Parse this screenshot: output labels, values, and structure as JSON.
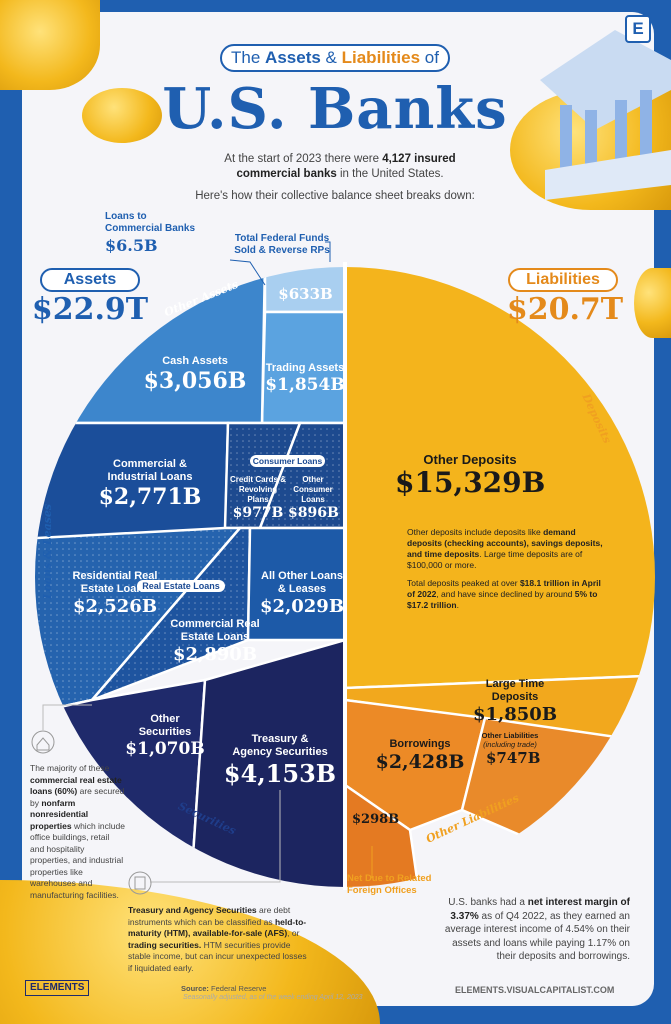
{
  "header": {
    "title_pre": "The",
    "title_assets": "Assets",
    "title_amp": "&",
    "title_liab": "Liabilities",
    "title_of": "of",
    "main_title": "U.S. Banks",
    "logo_letter": "E",
    "intro_1": "At the start of 2023 there were ",
    "intro_bold": "4,127 insured commercial banks",
    "intro_2": " in the United States.",
    "intro_line2": "Here's how their collective balance sheet breaks down:"
  },
  "chart_data": {
    "type": "pie",
    "title": "The Assets & Liabilities of U.S. Banks",
    "assets": {
      "label": "Assets",
      "total": "$22.9T",
      "groups": [
        {
          "name": "Other Assets",
          "items": [
            {
              "name": "Loans to Commercial Banks",
              "value": 6.5,
              "display": "$6.5B"
            },
            {
              "name": "Total Federal Funds Sold & Reverse RPs",
              "value": 633,
              "display": "$633B"
            },
            {
              "name": "Cash Assets",
              "value": 3056,
              "display": "$3,056B"
            },
            {
              "name": "Trading Assets",
              "value": 1854,
              "display": "$1,854B"
            }
          ]
        },
        {
          "name": "Loans & Leases",
          "items": [
            {
              "name": "Commercial & Industrial Loans",
              "value": 2771,
              "display": "$2,771B"
            },
            {
              "name": "Credit Cards & Revolving Plans",
              "group": "Consumer Loans",
              "value": 977,
              "display": "$977B"
            },
            {
              "name": "Other Consumer Loans",
              "group": "Consumer Loans",
              "value": 896,
              "display": "$896B"
            },
            {
              "name": "Residential Real Estate Loans",
              "group": "Real Estate Loans",
              "value": 2526,
              "display": "$2,526B"
            },
            {
              "name": "Commercial Real Estate Loans",
              "group": "Real Estate Loans",
              "value": 2890,
              "display": "$2,890B"
            },
            {
              "name": "All Other Loans & Leases",
              "value": 2029,
              "display": "$2,029B"
            }
          ]
        },
        {
          "name": "Securities",
          "items": [
            {
              "name": "Other Securities",
              "value": 1070,
              "display": "$1,070B"
            },
            {
              "name": "Treasury & Agency Securities",
              "value": 4153,
              "display": "$4,153B"
            }
          ]
        }
      ]
    },
    "liabilities": {
      "label": "Liabilities",
      "total": "$20.7T",
      "groups": [
        {
          "name": "Deposits",
          "items": [
            {
              "name": "Other Deposits",
              "value": 15329,
              "display": "$15,329B"
            },
            {
              "name": "Large Time Deposits",
              "value": 1850,
              "display": "$1,850B"
            }
          ]
        },
        {
          "name": "Other Liabilities",
          "items": [
            {
              "name": "Borrowings",
              "value": 2428,
              "display": "$2,428B"
            },
            {
              "name": "Other Liabilities (including trade)",
              "value": 747,
              "display": "$747B"
            },
            {
              "name": "Net Due to Related Foreign Offices",
              "value": 298,
              "display": "$298B"
            }
          ]
        }
      ]
    },
    "colors": {
      "assets_light": "#5ba3e0",
      "assets_mid": "#2f73bd",
      "assets_dark": "#1b4a93",
      "assets_navy": "#1c2560",
      "liab_yellow": "#f4b41c",
      "liab_orange": "#ec8a26"
    }
  },
  "labels": {
    "loans_commercial_banks_1": "Loans to",
    "loans_commercial_banks_2": "Commercial Banks",
    "loans_commercial_banks_val": "$6.5B",
    "fed_funds_1": "Total Federal Funds",
    "fed_funds_2": "Sold & Reverse RPs",
    "fed_funds_val": "$633B",
    "cash": "Cash Assets",
    "cash_val": "$3,056B",
    "trading": "Trading Assets",
    "trading_val": "$1,854B",
    "ci_1": "Commercial &",
    "ci_2": "Industrial Loans",
    "ci_val": "$2,771B",
    "consumer_loans": "Consumer Loans",
    "cc_1": "Credit Cards &",
    "cc_2": "Revolving Plans",
    "cc_val": "$977B",
    "oc_1": "Other",
    "oc_2": "Consumer",
    "oc_3": "Loans",
    "oc_val": "$896B",
    "res_1": "Residential Real",
    "res_2": "Estate Loans",
    "res_val": "$2,526B",
    "real_estate_loans": "Real Estate Loans",
    "cre_1": "Commercial Real",
    "cre_2": "Estate Loans",
    "cre_val": "$2,890B",
    "aol_1": "All Other Loans",
    "aol_2": "& Leases",
    "aol_val": "$2,029B",
    "os_1": "Other",
    "os_2": "Securities",
    "os_val": "$1,070B",
    "ts_1": "Treasury &",
    "ts_2": "Agency Securities",
    "ts_val": "$4,153B",
    "other_assets": "Other Assets",
    "loans_leases": "Loans & Leases",
    "securities": "Securities",
    "deposits": "Deposits",
    "other_liabilities": "Other Liabilities",
    "od": "Other Deposits",
    "od_val": "$15,329B",
    "od_note1_a": "Other deposits include deposits like ",
    "od_note1_b": "demand deposits (checking accounts), savings deposits, and time deposits",
    "od_note1_c": ". Large time deposits are of $100,000 or more.",
    "od_note2_a": "Total deposits peaked at over ",
    "od_note2_b": "$18.1 trillion in April of 2022",
    "od_note2_c": ", and have since declined by around ",
    "od_note2_d": "5% to $17.2 trillion",
    "od_note2_e": ".",
    "ltd": "Large Time Deposits",
    "ltd_val": "$1,850B",
    "borrow": "Borrowings",
    "borrow_val": "$2,428B",
    "ol_1": "Other Liabilities",
    "ol_2": "(including trade)",
    "ol_val": "$747B",
    "nd_val": "$298B",
    "nd_1": "Net Due to Related",
    "nd_2": "Foreign Offices"
  },
  "notes": {
    "cre_a": "The majority of these ",
    "cre_b": "commercial real estate loans (60%)",
    "cre_c": " are secured by ",
    "cre_d": "nonfarm nonresidential properties",
    "cre_e": " which include office buildings, retail and hospitality properties, and industrial properties like warehouses and manufacturing facilities.",
    "ts_a": "Treasury and Agency Securities",
    "ts_b": " are debt instruments which can be classified as ",
    "ts_c": "held-to-maturity (HTM), available-for-sale (AFS)",
    "ts_d": ", or ",
    "ts_e": "trading securities.",
    "ts_f": " HTM securities provide stable income, but can incur unexpected losses if liquidated early.",
    "nim_a": "U.S. banks had a ",
    "nim_b": "net interest margin of 3.37%",
    "nim_c": " as of Q4 2022, as they earned an average interest income of 4.54% on their assets and loans while paying 1.17% on their deposits and borrowings."
  },
  "footer": {
    "brand": "ELEMENTS",
    "source_label": "Source:",
    "source": " Federal Reserve",
    "source_note": "Seasonally adjusted, as of the week ending April 12, 2023",
    "url": "ELEMENTS.VISUALCAPITALIST.COM"
  }
}
